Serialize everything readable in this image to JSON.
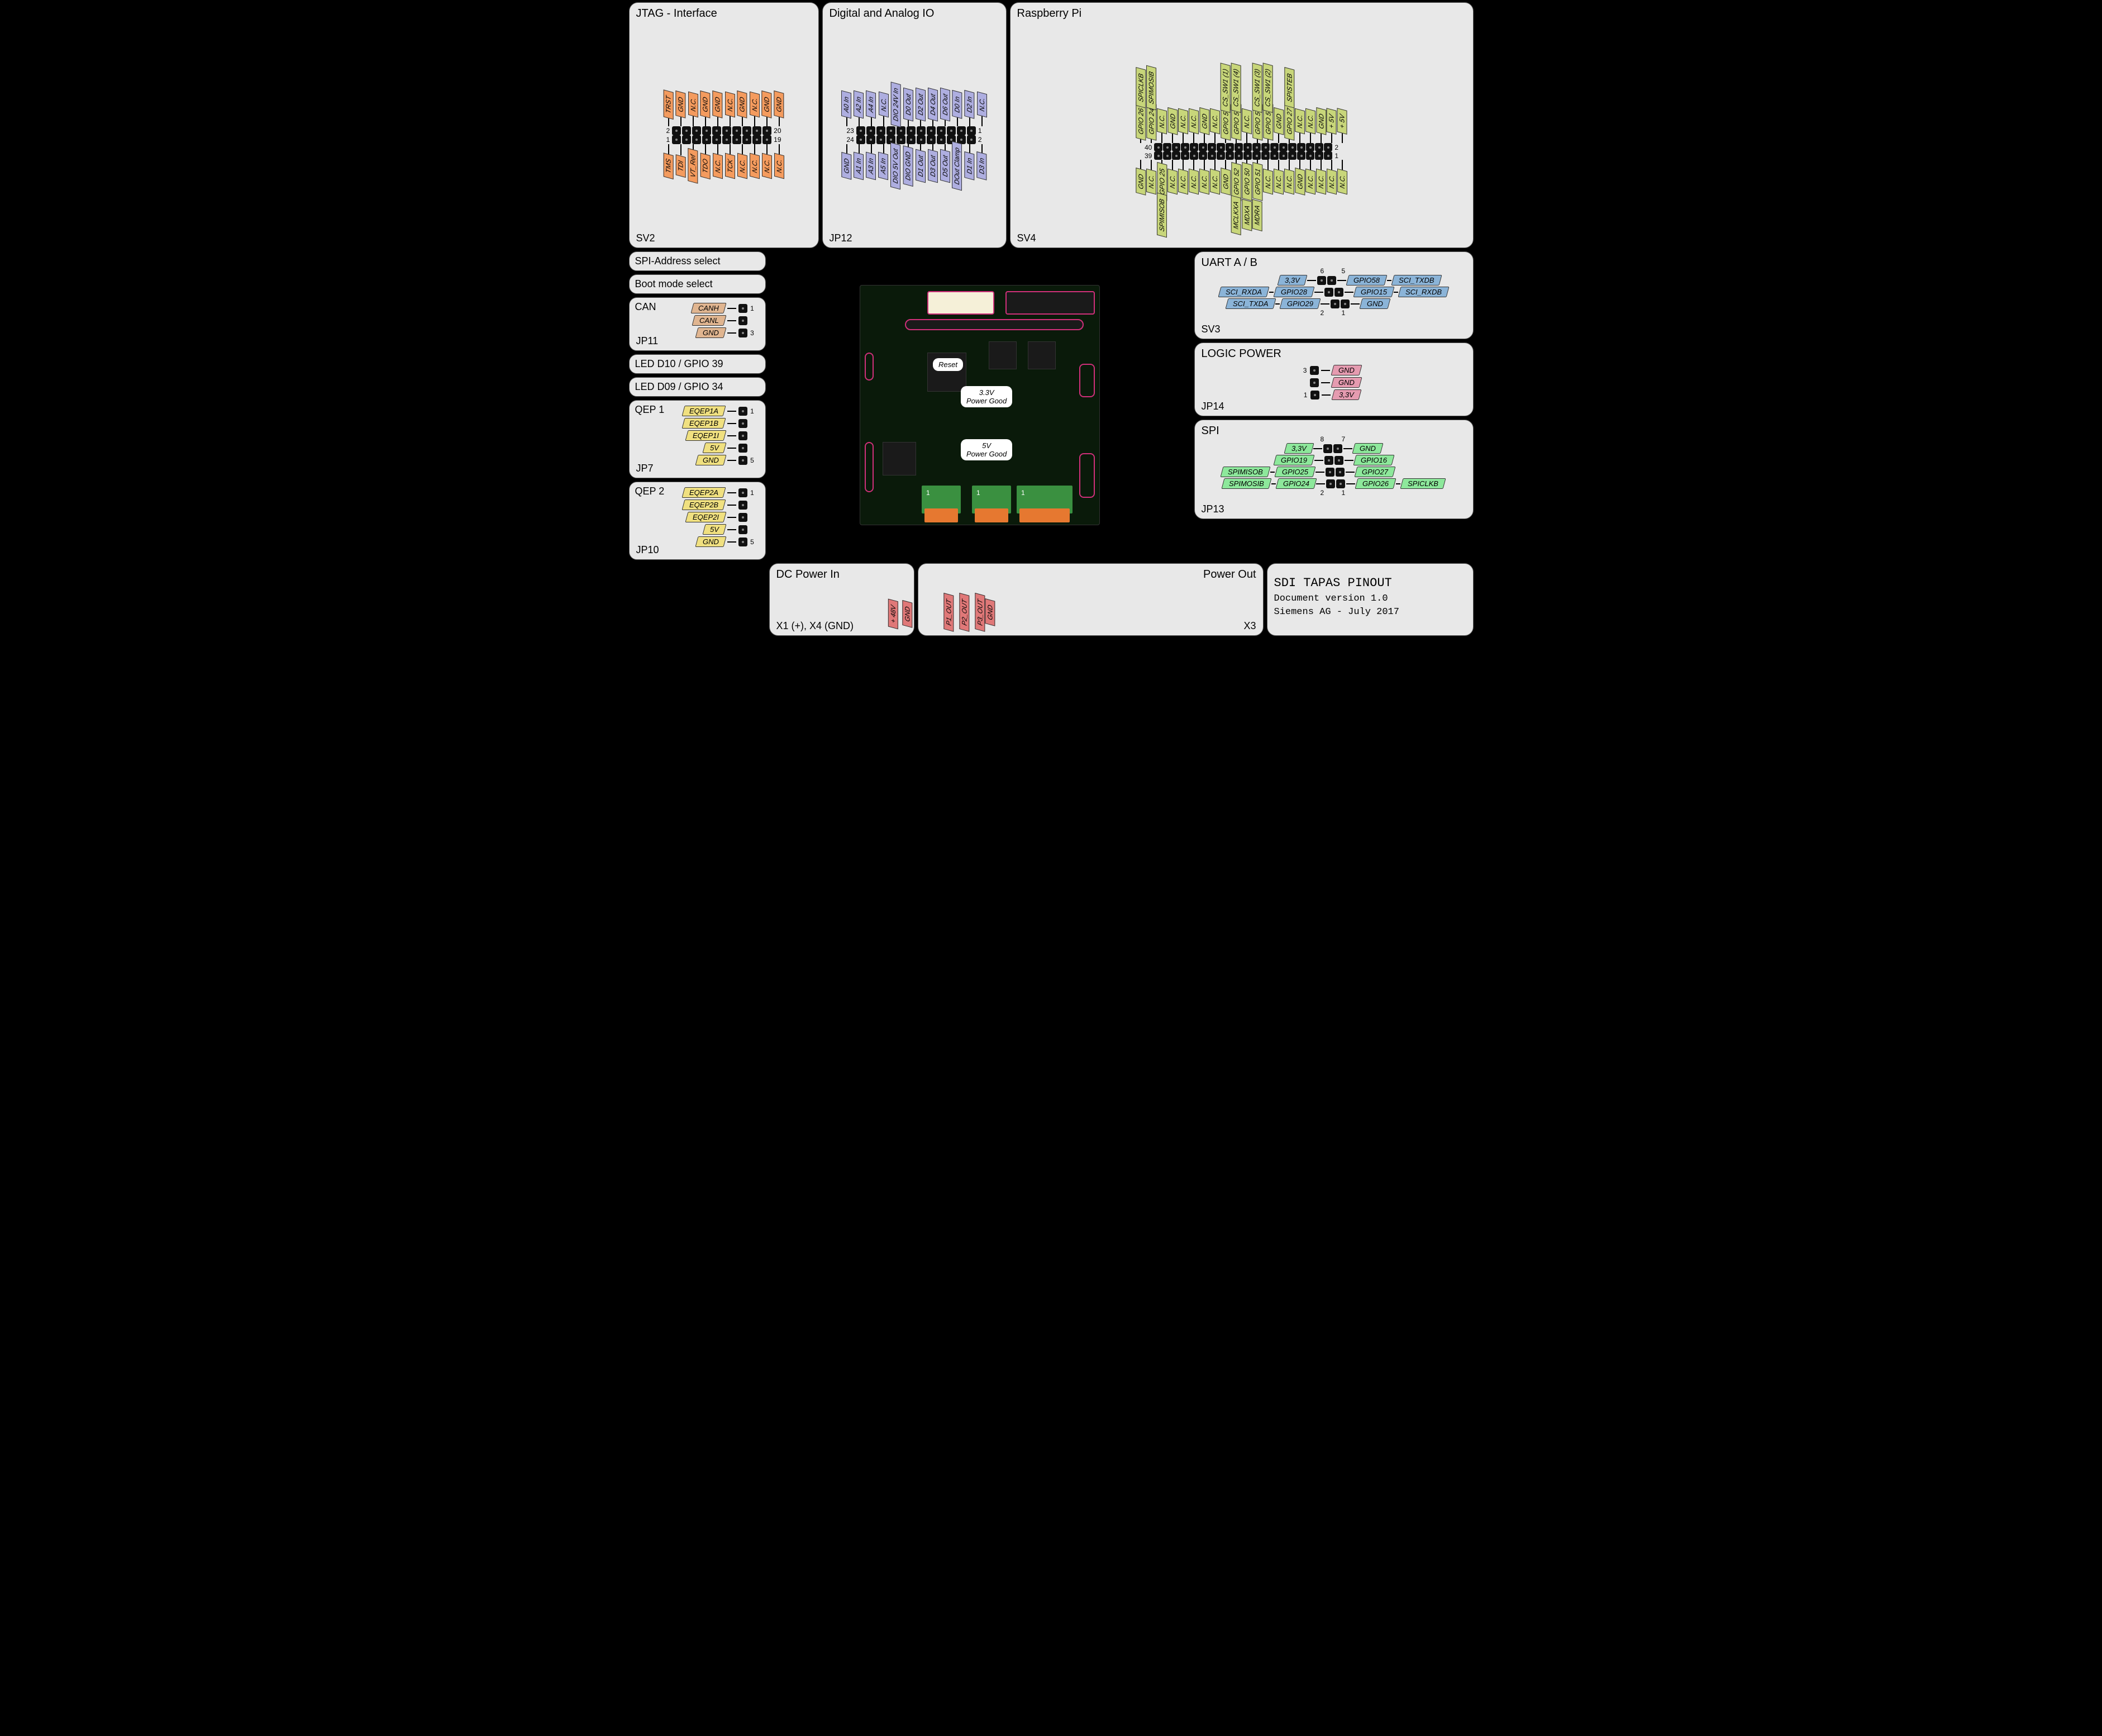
{
  "colors": {
    "orange": "#f49b5e",
    "lavender": "#aeaee0",
    "olive": "#c8d67a",
    "blue": "#8bb4d8",
    "green": "#8de89b",
    "pink": "#e59bb0",
    "yellow": "#f0e080",
    "tan": "#e0b590",
    "red": "#e07878",
    "panel_bg": "#e8e8e8",
    "pcb_bg": "#0a1a0a"
  },
  "jtag": {
    "title": "JTAG - Interface",
    "ref": "SV2",
    "top": [
      "TRST",
      "GND",
      "N.C.",
      "GND",
      "GND",
      "N.C.",
      "GND",
      "N.C.",
      "GND",
      "GND"
    ],
    "bottom": [
      "TMS",
      "TDI",
      "VT_Ref",
      "TDO",
      "N.C.",
      "TCK",
      "N.C.",
      "N.C.",
      "N.C.",
      "N.C."
    ],
    "nums": {
      "tl": "2",
      "tr": "20",
      "bl": "1",
      "br": "19"
    }
  },
  "dio": {
    "title": "Digital and Analog IO",
    "ref": "JP12",
    "top": [
      "A0 In",
      "A2 In",
      "A4 In",
      "N.C.",
      "DIO 24V In",
      "D0 Out",
      "D2 Out",
      "D4 Out",
      "D6 Out",
      "D0 In",
      "D2 In",
      "N.C."
    ],
    "bottom": [
      "GND",
      "A1 In",
      "A3 In",
      "A5 In",
      "DIO 5V Out",
      "DIO GND",
      "D1 Out",
      "D3 Out",
      "D5 Out",
      "DOut Clamp",
      "D1 In",
      "D3 In"
    ],
    "nums": {
      "tl": "23",
      "tr": "1",
      "bl": "24",
      "br": "2"
    }
  },
  "rpi": {
    "title": "Raspberry Pi",
    "ref": "SV4",
    "top": [
      "GPIO 26",
      "GPIO 24",
      "N.C.",
      "GND",
      "N.C.",
      "N.C.",
      "GND",
      "N.C.",
      "GPIO 53",
      "GPIO 53",
      "N.C.",
      "GPIO 53",
      "GPIO 53",
      "GND",
      "GPIO 27",
      "N.C.",
      "N.C.",
      "GND",
      "+ 5V",
      "+ 5V"
    ],
    "top2": [
      "SPICLKB",
      "SPIMOSIB",
      "",
      "",
      "",
      "",
      "",
      "",
      "CS_SW1 (1)",
      "CS_SW1 (4)",
      "",
      "CS_SW1 (3)",
      "CS_SW1 (2)",
      "",
      "SPISTEB",
      "",
      "",
      "",
      "",
      ""
    ],
    "bottom": [
      "GND",
      "N.C.",
      "GPIO 25",
      "N.C.",
      "N.C.",
      "N.C.",
      "N.C.",
      "N.C.",
      "GND",
      "GPIO 52",
      "GPIO 50",
      "GPIO 51",
      "N.C.",
      "N.C.",
      "N.C.",
      "GND",
      "N.C.",
      "N.C.",
      "N.C.",
      "N.C."
    ],
    "bottom2": [
      "",
      "",
      "SPIMISOB",
      "",
      "",
      "",
      "",
      "",
      "",
      "MCLKXA",
      "MDXA",
      "MDRA",
      "",
      "",
      "",
      "",
      "",
      "",
      "",
      ""
    ],
    "nums": {
      "tl": "40",
      "tr": "2",
      "bl": "39",
      "br": "1"
    }
  },
  "left_labels": {
    "spi_addr": "SPI-Address select",
    "boot": "Boot mode select",
    "led10": "LED D10 / GPIO 39",
    "led09": "LED D09 / GPIO 34"
  },
  "can": {
    "title": "CAN",
    "ref": "JP11",
    "pins": [
      {
        "label": "CANH",
        "n": "1"
      },
      {
        "label": "CANL",
        "n": ""
      },
      {
        "label": "GND",
        "n": "3"
      }
    ]
  },
  "qep1": {
    "title": "QEP 1",
    "ref": "JP7",
    "pins": [
      {
        "label": "EQEP1A",
        "n": "1"
      },
      {
        "label": "EQEP1B",
        "n": ""
      },
      {
        "label": "EQEP1I",
        "n": ""
      },
      {
        "label": "5V",
        "n": ""
      },
      {
        "label": "GND",
        "n": "5"
      }
    ]
  },
  "qep2": {
    "title": "QEP 2",
    "ref": "JP10",
    "pins": [
      {
        "label": "EQEP2A",
        "n": "1"
      },
      {
        "label": "EQEP2B",
        "n": ""
      },
      {
        "label": "EQEP2I",
        "n": ""
      },
      {
        "label": "5V",
        "n": ""
      },
      {
        "label": "GND",
        "n": "5"
      }
    ]
  },
  "uart": {
    "title": "UART A / B",
    "ref": "SV3",
    "rows": [
      {
        "l2": "",
        "l1": "3,3V",
        "r1": "GPIO58",
        "r2": "SCI_TXDB"
      },
      {
        "l2": "SCI_RXDA",
        "l1": "GPIO28",
        "r1": "GPIO15",
        "r2": "SCI_RXDB"
      },
      {
        "l2": "SCI_TXDA",
        "l1": "GPIO29",
        "r1": "GND",
        "r2": ""
      }
    ],
    "nums": {
      "tl": "6",
      "tr": "5",
      "bl": "2",
      "br": "1"
    }
  },
  "logic": {
    "title": "LOGIC POWER",
    "ref": "JP14",
    "pins": [
      {
        "label": "GND",
        "n": "3"
      },
      {
        "label": "GND",
        "n": ""
      },
      {
        "label": "3,3V",
        "n": "1"
      }
    ]
  },
  "spi": {
    "title": "SPI",
    "ref": "JP13",
    "rows": [
      {
        "l2": "",
        "l1": "3,3V",
        "r1": "GND",
        "r2": ""
      },
      {
        "l2": "",
        "l1": "GPIO19",
        "r1": "GPIO16",
        "r2": ""
      },
      {
        "l2": "SPIMISOB",
        "l1": "GPIO25",
        "r1": "GPIO27",
        "r2": ""
      },
      {
        "l2": "SPIMOSIB",
        "l1": "GPIO24",
        "r1": "GPIO26",
        "r2": "SPICLKB"
      }
    ],
    "nums": {
      "tl": "8",
      "tr": "7",
      "bl": "2",
      "br": "1"
    }
  },
  "dcpower": {
    "title": "DC Power In",
    "ref": "X1 (+), X4 (GND)",
    "pins": [
      "+ 48V",
      "GND"
    ]
  },
  "powerout": {
    "title": "Power Out",
    "ref": "X3",
    "pins": [
      "P1_OUT",
      "P2_OUT",
      "P3_OUT",
      "GND"
    ]
  },
  "pcb": {
    "reset": "Reset",
    "pg33": "3.3V\nPower Good",
    "pg5": "5V\nPower Good"
  },
  "doc": {
    "title": "SDI TAPAS PINOUT",
    "version": "Document version 1.0",
    "org": "Siemens AG - July 2017"
  }
}
